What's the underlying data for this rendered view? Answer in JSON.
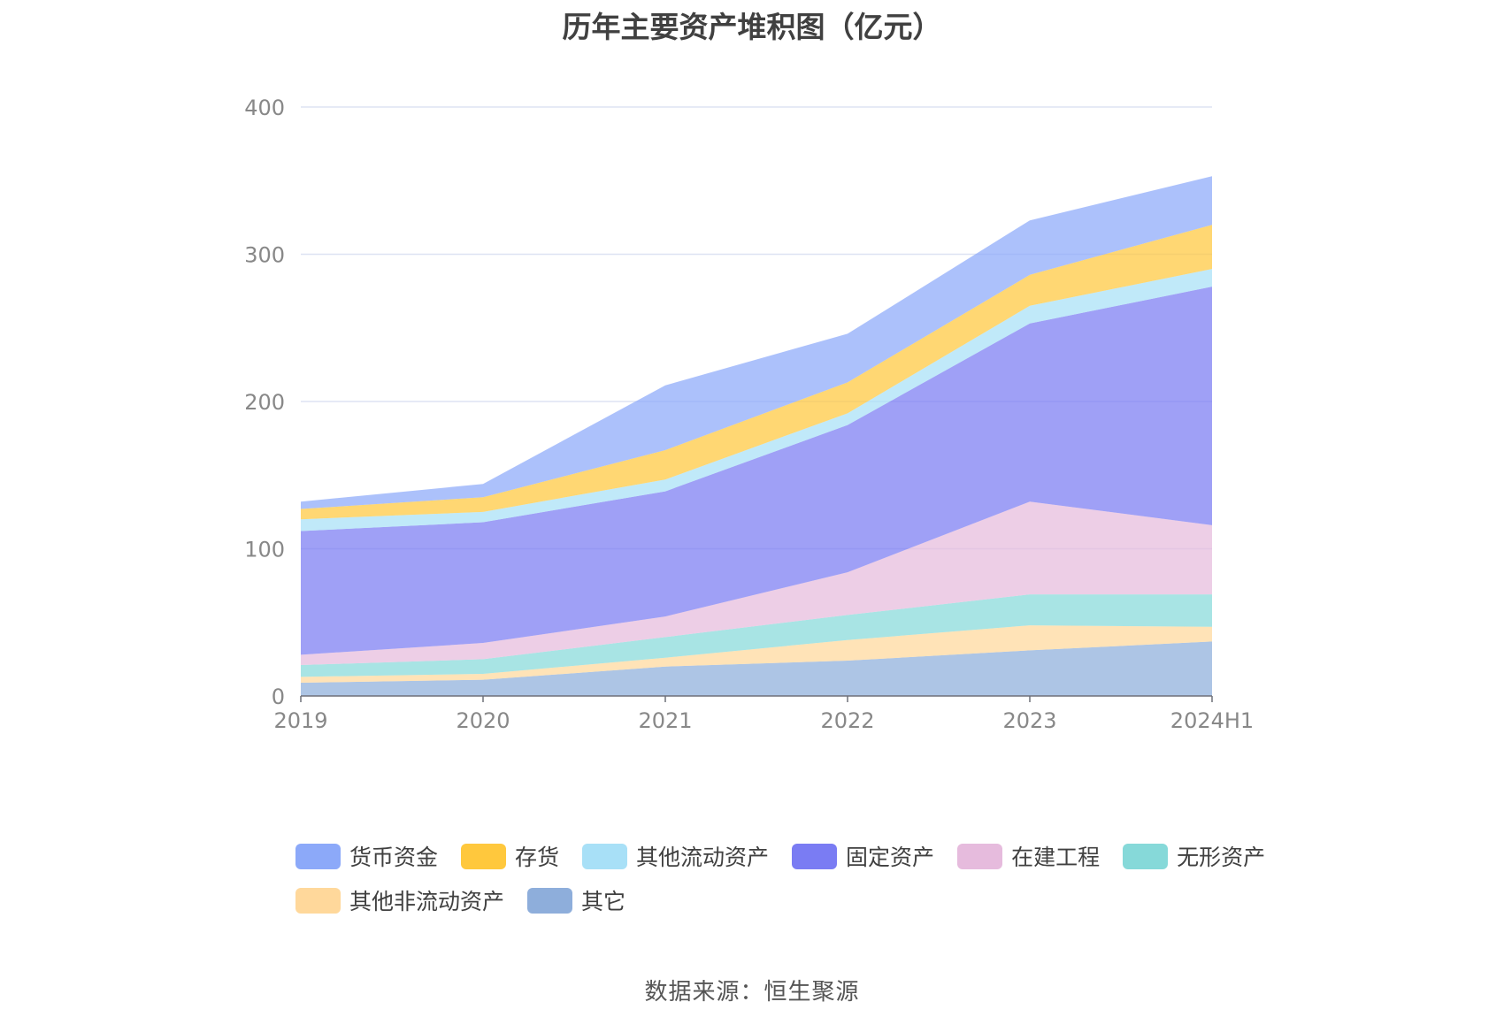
{
  "chart_data": {
    "type": "area",
    "stacked": true,
    "title": "历年主要资产堆积图（亿元）",
    "source": "数据来源：恒生聚源",
    "categories": [
      "2019",
      "2020",
      "2021",
      "2022",
      "2023",
      "2024H1"
    ],
    "ylim": [
      0,
      400
    ],
    "yticks": [
      0,
      100,
      200,
      300,
      400
    ],
    "grid": true,
    "legend_position": "bottom",
    "series": [
      {
        "name": "其它",
        "color": "#8EAEDB",
        "values": [
          9,
          11,
          20,
          24,
          31,
          37
        ]
      },
      {
        "name": "其他非流动资产",
        "color": "#FFD89B",
        "values": [
          4,
          4,
          6,
          14,
          17,
          10
        ]
      },
      {
        "name": "无形资产",
        "color": "#86D9D9",
        "values": [
          8,
          10,
          14,
          17,
          21,
          22
        ]
      },
      {
        "name": "在建工程",
        "color": "#E6BBDD",
        "values": [
          7,
          11,
          14,
          29,
          63,
          47
        ]
      },
      {
        "name": "固定资产",
        "color": "#7A7CF3",
        "values": [
          84,
          82,
          85,
          100,
          121,
          162
        ]
      },
      {
        "name": "其他流动资产",
        "color": "#A8E0F7",
        "values": [
          8,
          7,
          8,
          8,
          12,
          12
        ]
      },
      {
        "name": "存货",
        "color": "#FFC83D",
        "values": [
          7,
          10,
          20,
          21,
          21,
          30
        ]
      },
      {
        "name": "货币资金",
        "color": "#8CA9F9",
        "values": [
          5,
          9,
          44,
          33,
          37,
          33
        ]
      }
    ],
    "legend_order": [
      "货币资金",
      "存货",
      "其他流动资产",
      "固定资产",
      "在建工程",
      "无形资产",
      "其他非流动资产",
      "其它"
    ]
  }
}
